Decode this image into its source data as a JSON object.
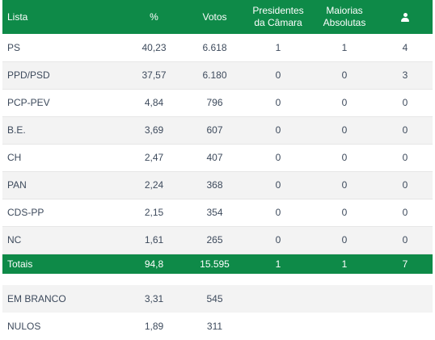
{
  "header": {
    "lista": "Lista",
    "percent": "%",
    "votos": "Votos",
    "presidentes_line1": "Presidentes",
    "presidentes_line2": "da Câmara",
    "maiorias_line1": "Maiorias",
    "maiorias_line2": "Absolutas",
    "mandates_icon": "user-icon"
  },
  "rows": [
    {
      "lista": "PS",
      "percent": "40,23",
      "votos": "6.618",
      "presidentes": "1",
      "maiorias": "1",
      "mandatos": "4"
    },
    {
      "lista": "PPD/PSD",
      "percent": "37,57",
      "votos": "6.180",
      "presidentes": "0",
      "maiorias": "0",
      "mandatos": "3"
    },
    {
      "lista": "PCP-PEV",
      "percent": "4,84",
      "votos": "796",
      "presidentes": "0",
      "maiorias": "0",
      "mandatos": "0"
    },
    {
      "lista": "B.E.",
      "percent": "3,69",
      "votos": "607",
      "presidentes": "0",
      "maiorias": "0",
      "mandatos": "0"
    },
    {
      "lista": "CH",
      "percent": "2,47",
      "votos": "407",
      "presidentes": "0",
      "maiorias": "0",
      "mandatos": "0"
    },
    {
      "lista": "PAN",
      "percent": "2,24",
      "votos": "368",
      "presidentes": "0",
      "maiorias": "0",
      "mandatos": "0"
    },
    {
      "lista": "CDS-PP",
      "percent": "2,15",
      "votos": "354",
      "presidentes": "0",
      "maiorias": "0",
      "mandatos": "0"
    },
    {
      "lista": "NC",
      "percent": "1,61",
      "votos": "265",
      "presidentes": "0",
      "maiorias": "0",
      "mandatos": "0"
    }
  ],
  "totals": {
    "lista": "Totais",
    "percent": "94,8",
    "votos": "15.595",
    "presidentes": "1",
    "maiorias": "1",
    "mandatos": "7"
  },
  "extra_rows": [
    {
      "lista": "EM BRANCO",
      "percent": "3,31",
      "votos": "545"
    },
    {
      "lista": "NULOS",
      "percent": "1,89",
      "votos": "311"
    }
  ],
  "colors": {
    "header_green": "#0e8a48",
    "stripe": "#f3f3f3",
    "text": "#3d4a5c"
  }
}
